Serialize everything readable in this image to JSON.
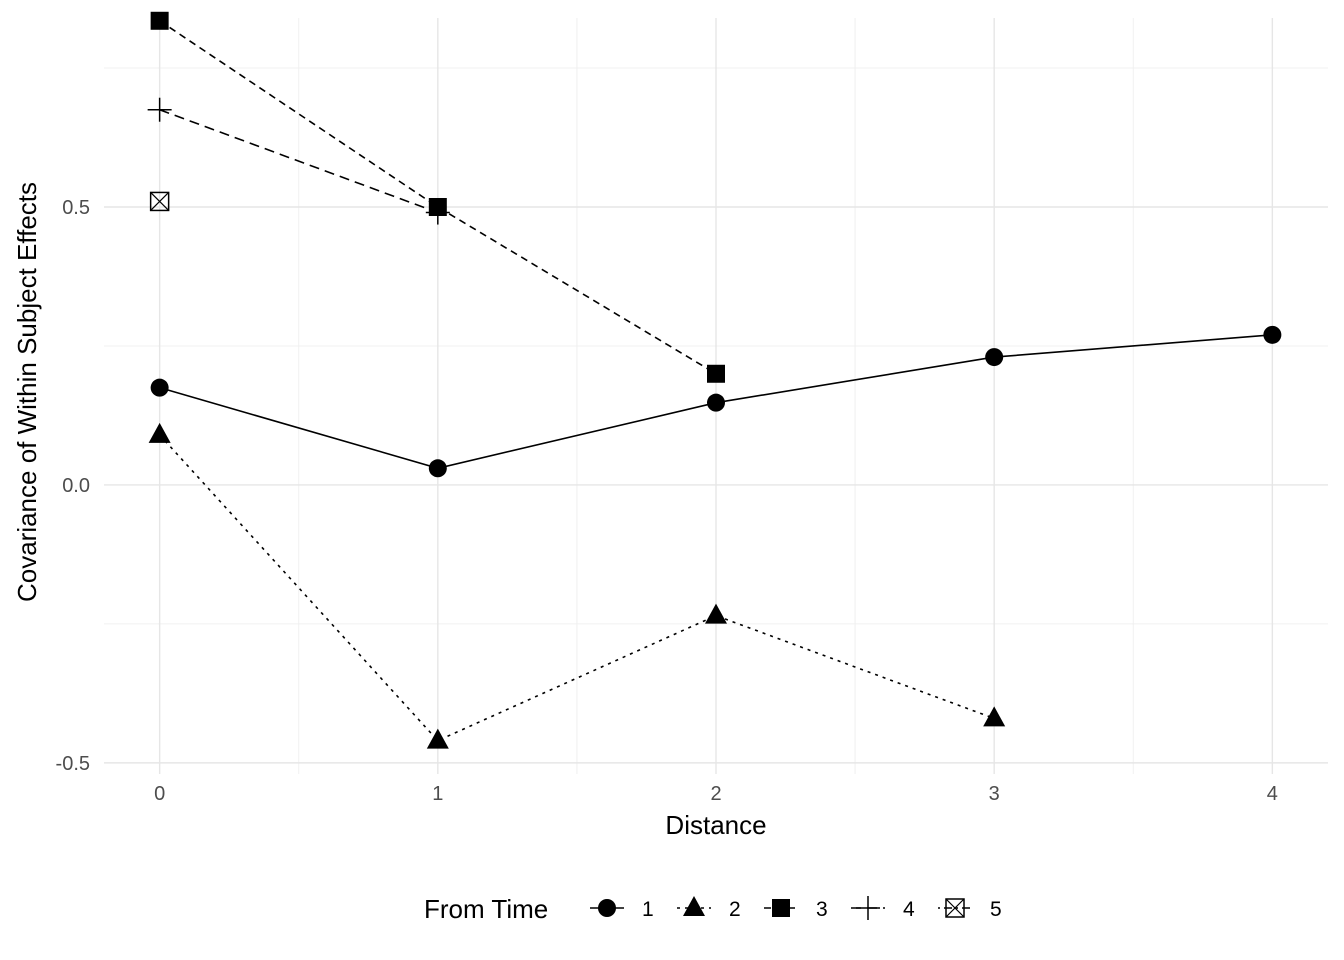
{
  "chart_data": {
    "type": "line",
    "xlabel": "Distance",
    "ylabel": "Covariance of Within Subject Effects",
    "xlim": [
      -0.2,
      4.2
    ],
    "ylim": [
      -0.52,
      0.84
    ],
    "x_ticks": [
      0,
      1,
      2,
      3,
      4
    ],
    "x_tick_labels": [
      "0",
      "1",
      "2",
      "3",
      "4"
    ],
    "y_ticks": [
      -0.5,
      0.0,
      0.5
    ],
    "y_tick_labels": [
      "-0.5",
      "0.0",
      "0.5"
    ],
    "grid": true,
    "legend": {
      "title": "From Time",
      "position": "bottom"
    },
    "series": [
      {
        "name": "1",
        "marker": "circle",
        "linestyle": "solid",
        "x": [
          0,
          1,
          2,
          3,
          4
        ],
        "y": [
          0.175,
          0.03,
          0.148,
          0.23,
          0.27
        ]
      },
      {
        "name": "2",
        "marker": "triangle",
        "linestyle": "dotted",
        "x": [
          0,
          1,
          2,
          3
        ],
        "y": [
          0.09,
          -0.46,
          -0.235,
          -0.42
        ]
      },
      {
        "name": "3",
        "marker": "square",
        "linestyle": "dashed",
        "x": [
          0,
          1,
          2
        ],
        "y": [
          0.835,
          0.5,
          0.2
        ]
      },
      {
        "name": "4",
        "marker": "plus",
        "linestyle": "longdash",
        "x": [
          0,
          1
        ],
        "y": [
          0.675,
          0.49
        ]
      },
      {
        "name": "5",
        "marker": "boxcross",
        "linestyle": "dotdash",
        "x": [
          0
        ],
        "y": [
          0.51
        ]
      }
    ]
  }
}
